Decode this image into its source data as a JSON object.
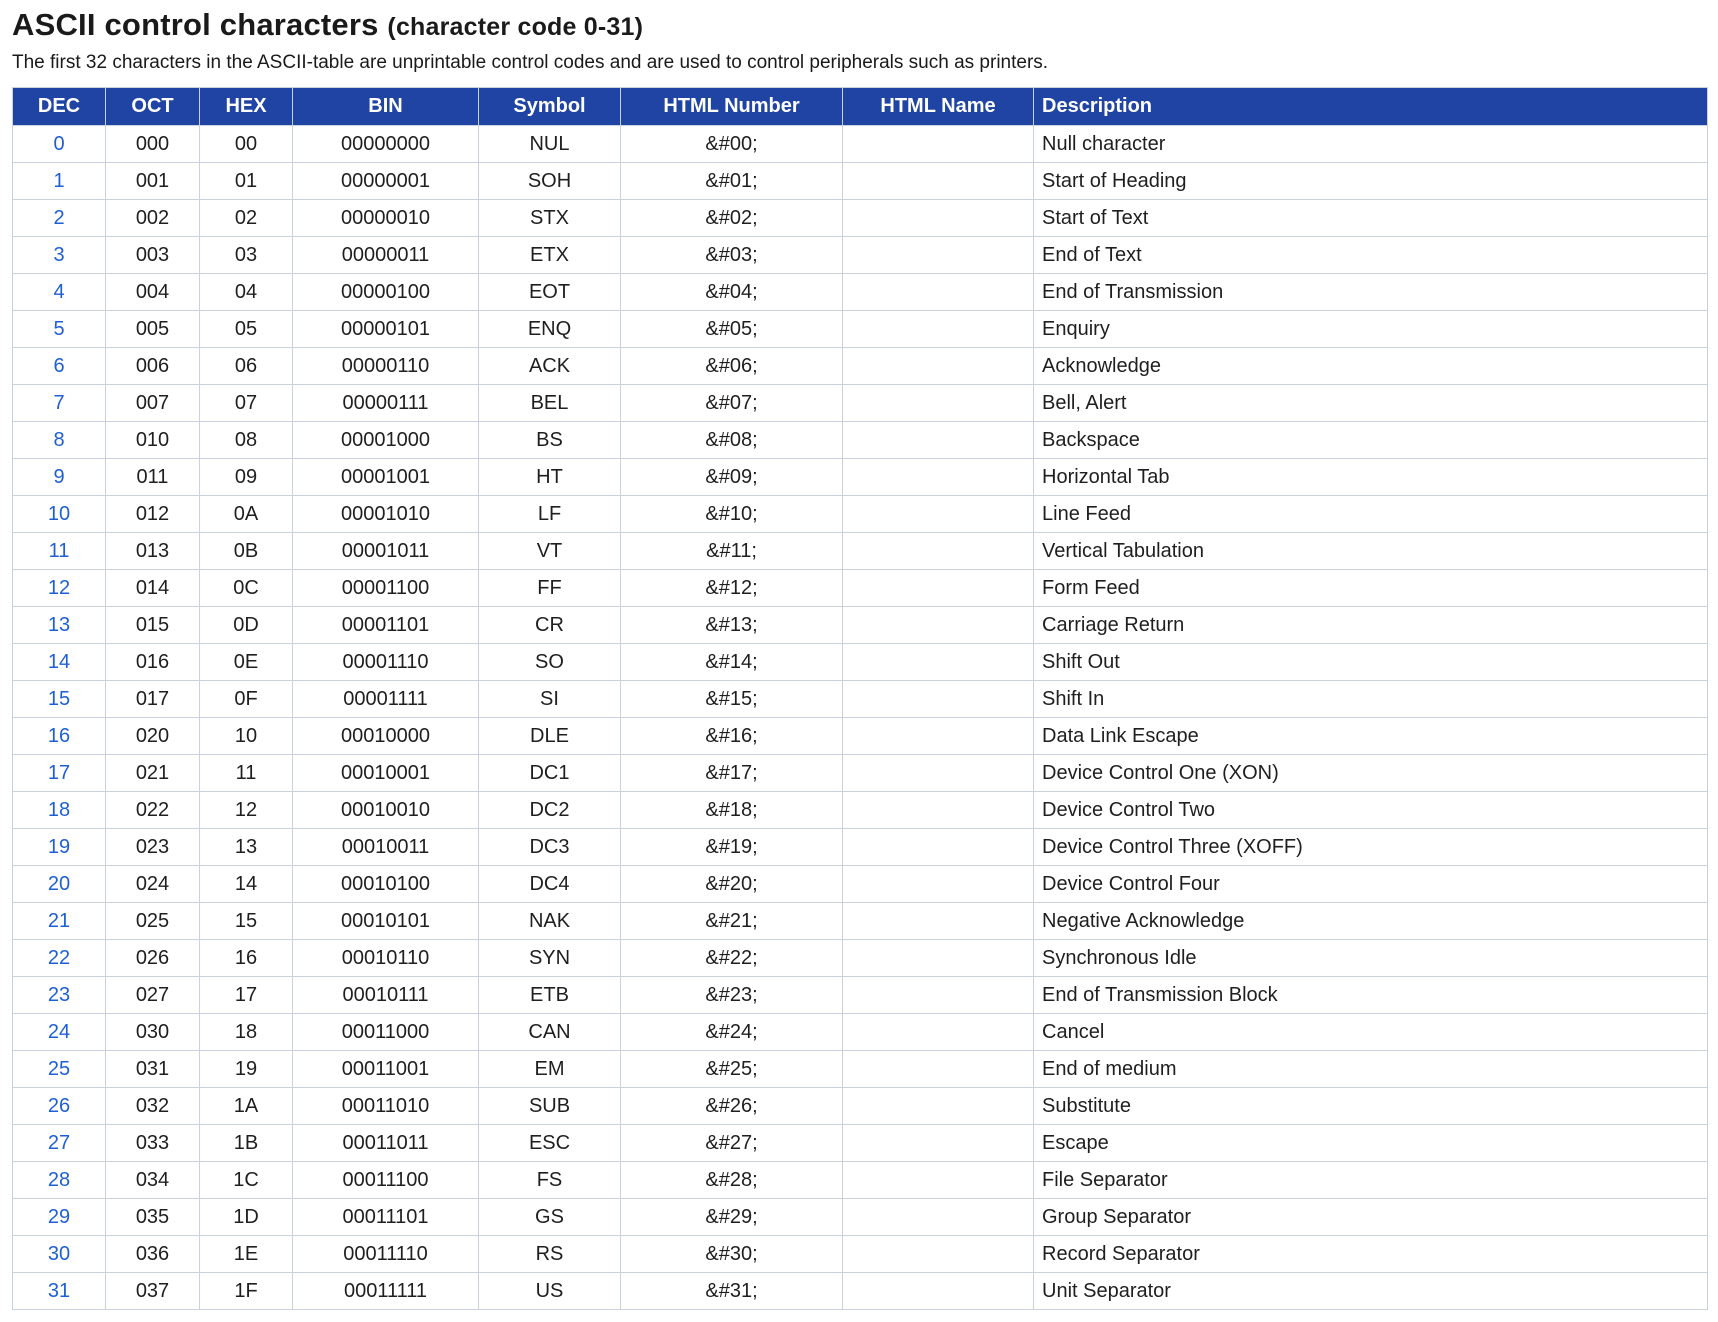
{
  "title": "ASCII control characters",
  "title_sub": "(character code 0-31)",
  "intro": "The first 32 characters in the ASCII-table are unprintable control codes and are used to control peripherals such as printers.",
  "colors": {
    "header_bg": "#1f44a3",
    "header_text": "#ffffff",
    "link": "#1f5fd6",
    "border": "#c9d2dc"
  },
  "columns": [
    "DEC",
    "OCT",
    "HEX",
    "BIN",
    "Symbol",
    "HTML Number",
    "HTML Name",
    "Description"
  ],
  "rows": [
    {
      "dec": "0",
      "oct": "000",
      "hex": "00",
      "bin": "00000000",
      "symbol": "NUL",
      "html_number": "&#00;",
      "html_name": "",
      "description": "Null character"
    },
    {
      "dec": "1",
      "oct": "001",
      "hex": "01",
      "bin": "00000001",
      "symbol": "SOH",
      "html_number": "&#01;",
      "html_name": "",
      "description": "Start of Heading"
    },
    {
      "dec": "2",
      "oct": "002",
      "hex": "02",
      "bin": "00000010",
      "symbol": "STX",
      "html_number": "&#02;",
      "html_name": "",
      "description": "Start of Text"
    },
    {
      "dec": "3",
      "oct": "003",
      "hex": "03",
      "bin": "00000011",
      "symbol": "ETX",
      "html_number": "&#03;",
      "html_name": "",
      "description": "End of Text"
    },
    {
      "dec": "4",
      "oct": "004",
      "hex": "04",
      "bin": "00000100",
      "symbol": "EOT",
      "html_number": "&#04;",
      "html_name": "",
      "description": "End of Transmission"
    },
    {
      "dec": "5",
      "oct": "005",
      "hex": "05",
      "bin": "00000101",
      "symbol": "ENQ",
      "html_number": "&#05;",
      "html_name": "",
      "description": "Enquiry"
    },
    {
      "dec": "6",
      "oct": "006",
      "hex": "06",
      "bin": "00000110",
      "symbol": "ACK",
      "html_number": "&#06;",
      "html_name": "",
      "description": "Acknowledge"
    },
    {
      "dec": "7",
      "oct": "007",
      "hex": "07",
      "bin": "00000111",
      "symbol": "BEL",
      "html_number": "&#07;",
      "html_name": "",
      "description": "Bell, Alert"
    },
    {
      "dec": "8",
      "oct": "010",
      "hex": "08",
      "bin": "00001000",
      "symbol": "BS",
      "html_number": "&#08;",
      "html_name": "",
      "description": "Backspace"
    },
    {
      "dec": "9",
      "oct": "011",
      "hex": "09",
      "bin": "00001001",
      "symbol": "HT",
      "html_number": "&#09;",
      "html_name": "",
      "description": "Horizontal Tab"
    },
    {
      "dec": "10",
      "oct": "012",
      "hex": "0A",
      "bin": "00001010",
      "symbol": "LF",
      "html_number": "&#10;",
      "html_name": "",
      "description": "Line Feed"
    },
    {
      "dec": "11",
      "oct": "013",
      "hex": "0B",
      "bin": "00001011",
      "symbol": "VT",
      "html_number": "&#11;",
      "html_name": "",
      "description": "Vertical Tabulation"
    },
    {
      "dec": "12",
      "oct": "014",
      "hex": "0C",
      "bin": "00001100",
      "symbol": "FF",
      "html_number": "&#12;",
      "html_name": "",
      "description": "Form Feed"
    },
    {
      "dec": "13",
      "oct": "015",
      "hex": "0D",
      "bin": "00001101",
      "symbol": "CR",
      "html_number": "&#13;",
      "html_name": "",
      "description": "Carriage Return"
    },
    {
      "dec": "14",
      "oct": "016",
      "hex": "0E",
      "bin": "00001110",
      "symbol": "SO",
      "html_number": "&#14;",
      "html_name": "",
      "description": "Shift Out"
    },
    {
      "dec": "15",
      "oct": "017",
      "hex": "0F",
      "bin": "00001111",
      "symbol": "SI",
      "html_number": "&#15;",
      "html_name": "",
      "description": "Shift In"
    },
    {
      "dec": "16",
      "oct": "020",
      "hex": "10",
      "bin": "00010000",
      "symbol": "DLE",
      "html_number": "&#16;",
      "html_name": "",
      "description": "Data Link Escape"
    },
    {
      "dec": "17",
      "oct": "021",
      "hex": "11",
      "bin": "00010001",
      "symbol": "DC1",
      "html_number": "&#17;",
      "html_name": "",
      "description": "Device Control One (XON)"
    },
    {
      "dec": "18",
      "oct": "022",
      "hex": "12",
      "bin": "00010010",
      "symbol": "DC2",
      "html_number": "&#18;",
      "html_name": "",
      "description": "Device Control Two"
    },
    {
      "dec": "19",
      "oct": "023",
      "hex": "13",
      "bin": "00010011",
      "symbol": "DC3",
      "html_number": "&#19;",
      "html_name": "",
      "description": "Device Control Three (XOFF)"
    },
    {
      "dec": "20",
      "oct": "024",
      "hex": "14",
      "bin": "00010100",
      "symbol": "DC4",
      "html_number": "&#20;",
      "html_name": "",
      "description": "Device Control Four"
    },
    {
      "dec": "21",
      "oct": "025",
      "hex": "15",
      "bin": "00010101",
      "symbol": "NAK",
      "html_number": "&#21;",
      "html_name": "",
      "description": "Negative Acknowledge"
    },
    {
      "dec": "22",
      "oct": "026",
      "hex": "16",
      "bin": "00010110",
      "symbol": "SYN",
      "html_number": "&#22;",
      "html_name": "",
      "description": "Synchronous Idle"
    },
    {
      "dec": "23",
      "oct": "027",
      "hex": "17",
      "bin": "00010111",
      "symbol": "ETB",
      "html_number": "&#23;",
      "html_name": "",
      "description": "End of Transmission Block"
    },
    {
      "dec": "24",
      "oct": "030",
      "hex": "18",
      "bin": "00011000",
      "symbol": "CAN",
      "html_number": "&#24;",
      "html_name": "",
      "description": "Cancel"
    },
    {
      "dec": "25",
      "oct": "031",
      "hex": "19",
      "bin": "00011001",
      "symbol": "EM",
      "html_number": "&#25;",
      "html_name": "",
      "description": "End of medium"
    },
    {
      "dec": "26",
      "oct": "032",
      "hex": "1A",
      "bin": "00011010",
      "symbol": "SUB",
      "html_number": "&#26;",
      "html_name": "",
      "description": "Substitute"
    },
    {
      "dec": "27",
      "oct": "033",
      "hex": "1B",
      "bin": "00011011",
      "symbol": "ESC",
      "html_number": "&#27;",
      "html_name": "",
      "description": "Escape"
    },
    {
      "dec": "28",
      "oct": "034",
      "hex": "1C",
      "bin": "00011100",
      "symbol": "FS",
      "html_number": "&#28;",
      "html_name": "",
      "description": "File Separator"
    },
    {
      "dec": "29",
      "oct": "035",
      "hex": "1D",
      "bin": "00011101",
      "symbol": "GS",
      "html_number": "&#29;",
      "html_name": "",
      "description": "Group Separator"
    },
    {
      "dec": "30",
      "oct": "036",
      "hex": "1E",
      "bin": "00011110",
      "symbol": "RS",
      "html_number": "&#30;",
      "html_name": "",
      "description": "Record Separator"
    },
    {
      "dec": "31",
      "oct": "037",
      "hex": "1F",
      "bin": "00011111",
      "symbol": "US",
      "html_number": "&#31;",
      "html_name": "",
      "description": "Unit Separator"
    }
  ]
}
